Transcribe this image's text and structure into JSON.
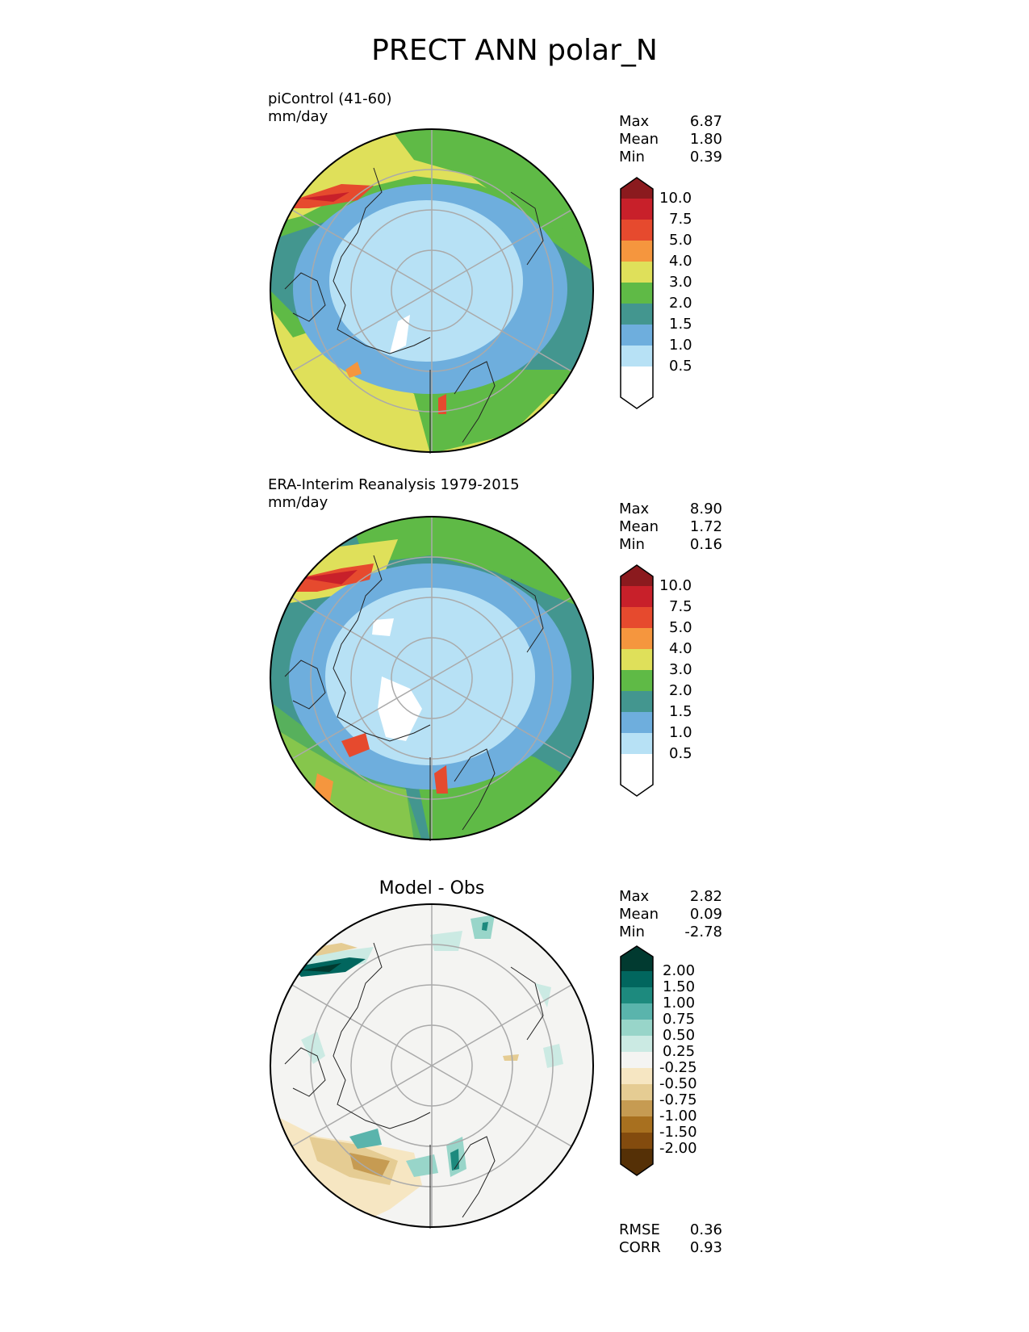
{
  "title": "PRECT ANN polar_N",
  "panels": [
    {
      "title": "piControl (41-60)",
      "units": "mm/day",
      "stats": [
        {
          "label": "Max",
          "value": "6.87"
        },
        {
          "label": "Mean",
          "value": "1.80"
        },
        {
          "label": "Min",
          "value": "0.39"
        }
      ]
    },
    {
      "title": "ERA-Interim Reanalysis 1979-2015",
      "units": "mm/day",
      "stats": [
        {
          "label": "Max",
          "value": "8.90"
        },
        {
          "label": "Mean",
          "value": "1.72"
        },
        {
          "label": "Min",
          "value": "0.16"
        }
      ]
    },
    {
      "title": "Model - Obs",
      "stats": [
        {
          "label": "Max",
          "value": "2.82"
        },
        {
          "label": "Mean",
          "value": "0.09"
        },
        {
          "label": "Min",
          "value": "-2.78"
        }
      ],
      "metrics": [
        {
          "label": "RMSE",
          "value": "0.36"
        },
        {
          "label": "CORR",
          "value": "0.93"
        }
      ]
    }
  ],
  "colorbars": {
    "precip": {
      "levels": [
        "10.0",
        "7.5",
        "5.0",
        "4.0",
        "3.0",
        "2.0",
        "1.5",
        "1.0",
        "0.5"
      ],
      "colors": [
        "#8b1a1e",
        "#c8202a",
        "#e64a2e",
        "#f5963e",
        "#dfe05a",
        "#5fba46",
        "#43968f",
        "#6eaedd",
        "#b7e1f5",
        "#ffffff"
      ]
    },
    "diff": {
      "levels": [
        "2.00",
        "1.50",
        "1.00",
        "0.75",
        "0.50",
        "0.25",
        "-0.25",
        "-0.50",
        "-0.75",
        "-1.00",
        "-1.50",
        "-2.00"
      ],
      "colors": [
        "#013a30",
        "#01665e",
        "#1d8a7e",
        "#5ab4ac",
        "#98d5c9",
        "#cbeae3",
        "#f4f4f2",
        "#f6e6c2",
        "#e5cc93",
        "#c69b52",
        "#a8701f",
        "#834b0e",
        "#553006"
      ]
    }
  }
}
